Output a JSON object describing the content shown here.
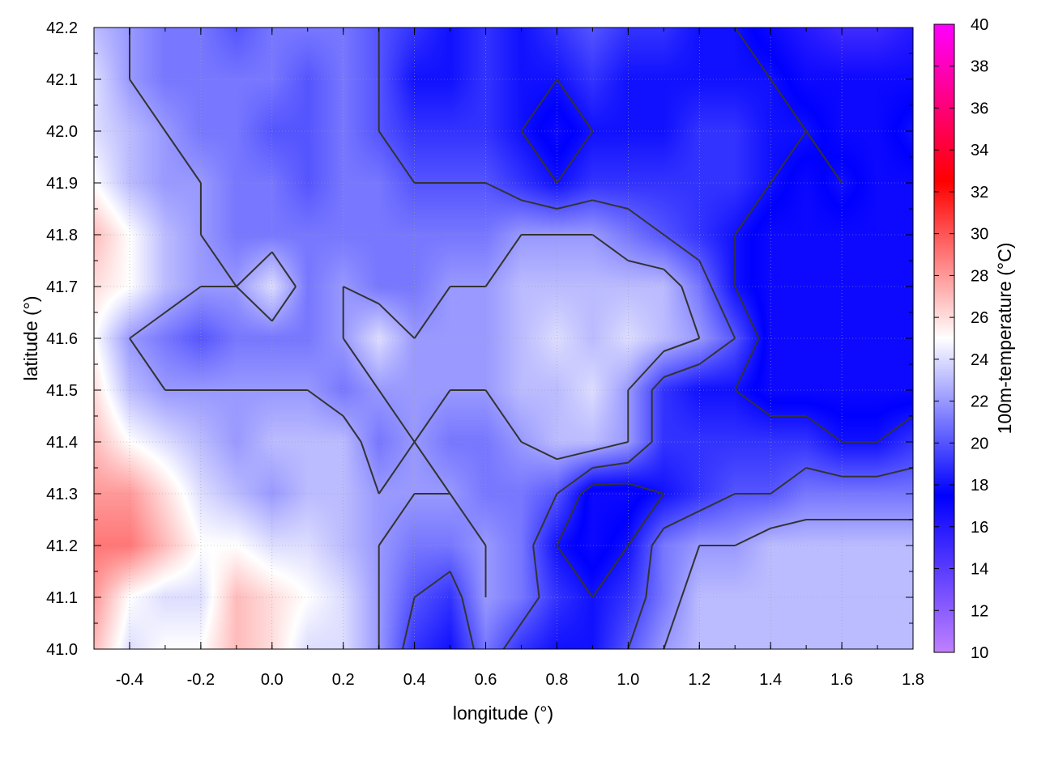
{
  "chart_data": {
    "type": "heatmap",
    "title": "",
    "xlabel": "longitude (°)",
    "ylabel": "latitude (°)",
    "colorbar_label": "100m-temperature (°C)",
    "xlim": [
      -0.5,
      1.8
    ],
    "ylim": [
      41.0,
      42.2
    ],
    "clim": [
      10,
      40
    ],
    "x_ticks": [
      "-0.4",
      "-0.2",
      "0.0",
      "0.2",
      "0.4",
      "0.6",
      "0.8",
      "1.0",
      "1.2",
      "1.4",
      "1.6",
      "1.8"
    ],
    "y_ticks": [
      "41.0",
      "41.1",
      "41.2",
      "41.3",
      "41.4",
      "41.5",
      "41.6",
      "41.7",
      "41.8",
      "41.9",
      "42.0",
      "42.1",
      "42.2"
    ],
    "colorbar_ticks": [
      "10",
      "12",
      "14",
      "16",
      "18",
      "20",
      "22",
      "24",
      "26",
      "28",
      "30",
      "32",
      "34",
      "36",
      "38",
      "40"
    ],
    "grid": true,
    "colormap": [
      {
        "value": 10,
        "color": "#c080ff"
      },
      {
        "value": 17.5,
        "color": "#0000ff"
      },
      {
        "value": 25,
        "color": "#ffffff"
      },
      {
        "value": 32.5,
        "color": "#ff0000"
      },
      {
        "value": 40,
        "color": "#ff00ff"
      }
    ],
    "contour_color": "#333333",
    "contour_levels": [
      18,
      20,
      22
    ],
    "lon": [
      -0.5,
      -0.4,
      -0.3,
      -0.2,
      -0.1,
      0.0,
      0.1,
      0.2,
      0.3,
      0.4,
      0.5,
      0.6,
      0.7,
      0.8,
      0.9,
      1.0,
      1.1,
      1.2,
      1.3,
      1.4,
      1.5,
      1.6,
      1.7,
      1.8
    ],
    "lat": [
      42.2,
      42.1,
      42.0,
      41.9,
      41.8,
      41.7,
      41.6,
      41.5,
      41.4,
      41.3,
      41.2,
      41.1,
      41.0
    ],
    "values": [
      [
        23,
        22,
        21,
        21,
        20,
        21,
        21,
        21,
        20,
        19,
        18,
        19,
        18,
        19,
        20,
        19,
        19,
        18,
        18,
        17,
        16,
        15,
        15,
        16
      ],
      [
        24,
        22,
        21,
        21,
        21,
        21,
        20,
        21,
        20,
        18,
        18,
        19,
        18,
        18,
        19,
        18,
        18,
        18,
        18,
        18,
        17,
        17,
        17,
        17
      ],
      [
        24,
        23,
        22,
        21,
        21,
        20,
        20,
        21,
        20,
        19,
        19,
        19,
        18,
        17,
        18,
        18,
        18,
        19,
        19,
        18,
        18,
        17,
        17,
        18
      ],
      [
        25,
        23,
        22,
        22,
        21,
        21,
        20,
        21,
        21,
        20,
        20,
        20,
        19,
        18,
        19,
        19,
        19,
        19,
        19,
        18,
        17,
        18,
        17,
        17
      ],
      [
        27,
        25,
        23,
        22,
        21,
        21,
        21,
        21,
        21,
        21,
        21,
        21,
        22,
        22,
        22,
        21,
        20,
        19,
        18,
        17,
        17,
        17,
        17,
        17
      ],
      [
        26,
        25,
        23,
        22,
        22,
        24,
        21,
        22,
        21,
        21,
        22,
        22,
        23,
        23,
        23,
        23,
        23,
        21,
        18,
        17,
        17,
        17,
        17,
        17
      ],
      [
        25,
        22,
        21,
        20,
        21,
        21,
        21,
        22,
        24,
        22,
        22,
        22,
        23,
        24,
        23,
        24,
        23,
        22,
        20,
        17,
        17,
        17,
        17,
        17
      ],
      [
        26,
        23,
        22,
        22,
        22,
        22,
        22,
        21,
        22,
        22,
        22,
        22,
        23,
        23,
        24,
        22,
        19,
        18,
        18,
        17,
        17,
        17,
        17,
        17
      ],
      [
        27,
        25,
        24,
        23,
        22,
        23,
        23,
        23,
        21,
        22,
        21,
        21,
        22,
        23,
        23,
        22,
        19,
        19,
        19,
        19,
        19,
        18,
        18,
        19
      ],
      [
        28,
        28,
        26,
        24,
        23,
        22,
        23,
        23,
        22,
        22,
        22,
        21,
        21,
        20,
        17,
        17,
        18,
        19,
        20,
        20,
        21,
        21,
        21,
        21
      ],
      [
        29,
        29,
        27,
        25,
        25,
        24,
        24,
        23,
        22,
        21,
        21,
        22,
        21,
        18,
        17,
        18,
        21,
        22,
        22,
        23,
        23,
        23,
        23,
        23
      ],
      [
        28,
        25,
        24,
        24,
        27,
        26,
        25,
        24,
        22,
        20,
        19,
        22,
        21,
        19,
        18,
        19,
        21,
        23,
        23,
        23,
        23,
        23,
        23,
        23
      ],
      [
        27,
        24,
        25,
        25,
        27,
        26,
        24,
        24,
        22,
        19,
        18,
        21,
        19,
        18,
        18,
        20,
        22,
        23,
        23,
        23,
        23,
        23,
        23,
        23
      ]
    ]
  }
}
